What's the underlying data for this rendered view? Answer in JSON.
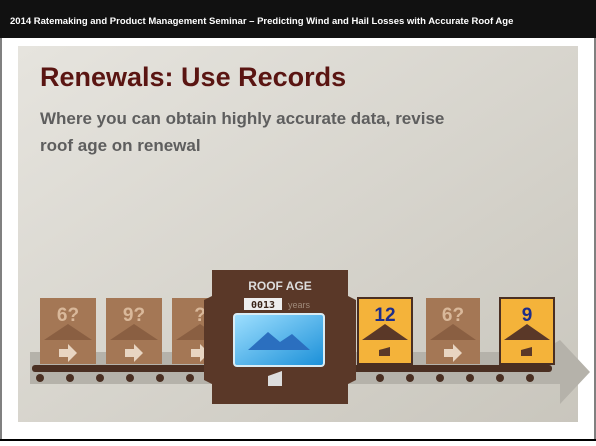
{
  "header": "2014 Ratemaking and Product Management Seminar – Predicting Wind and Hail Losses with Accurate Roof Age",
  "title": "Renewals: Use Records",
  "body": [
    "Where you can obtain highly accurate data, revise",
    "roof age on renewal"
  ],
  "machine": {
    "label": "ROOF AGE",
    "counter": "0013",
    "unit": "years"
  },
  "boxes": [
    "6?",
    "9?",
    "?",
    "12",
    "6?",
    "9"
  ]
}
